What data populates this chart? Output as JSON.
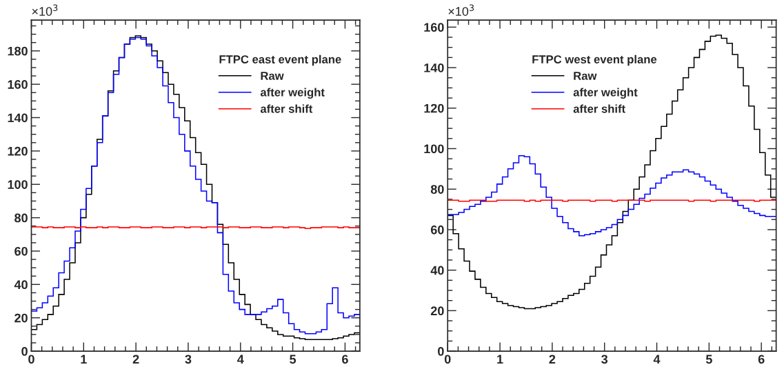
{
  "chart_data": [
    {
      "type": "histogram",
      "legend_title": "FTPC east event plane",
      "annotations": [
        "×10$^{3}$"
      ],
      "legend": "top right",
      "xlim": [
        0,
        6.2832
      ],
      "xticks": [
        0,
        1,
        2,
        3,
        4,
        5,
        6
      ],
      "ylim": [
        0,
        198.5
      ],
      "yticks": [
        0,
        20,
        40,
        60,
        80,
        100,
        120,
        140,
        160,
        180
      ],
      "bins": [
        0,
        0.1047,
        0.2094,
        0.3142,
        0.4189,
        0.5236,
        0.6283,
        0.733,
        0.8378,
        0.9425,
        1.0472,
        1.1519,
        1.2566,
        1.3614,
        1.4661,
        1.5708,
        1.6755,
        1.7802,
        1.885,
        1.9897,
        2.0944,
        2.1991,
        2.3038,
        2.4086,
        2.5133,
        2.618,
        2.7227,
        2.8274,
        2.9322,
        3.0369,
        3.1416,
        3.2463,
        3.351,
        3.4558,
        3.5605,
        3.6652,
        3.7699,
        3.8746,
        3.9794,
        4.0841,
        4.1888,
        4.2935,
        4.3982,
        4.5029,
        4.6077,
        4.7124,
        4.8171,
        4.9218,
        5.0265,
        5.1313,
        5.236,
        5.3407,
        5.4454,
        5.5501,
        5.6549,
        5.7596,
        5.8643,
        5.969,
        6.0737,
        6.1785,
        6.2832
      ],
      "series": [
        {
          "name": "Raw",
          "color": "#000000",
          "values": [
            13,
            16,
            19,
            22,
            27,
            34,
            43,
            53,
            65,
            80,
            94,
            111,
            127,
            141,
            156,
            168,
            176,
            184,
            188,
            189,
            188,
            184,
            180,
            174,
            167,
            160,
            154,
            146,
            138,
            128,
            119,
            112,
            100,
            89,
            76,
            64,
            53,
            43,
            34,
            28,
            22,
            19,
            16,
            14,
            12,
            10,
            9,
            9,
            8,
            7.5,
            7,
            7,
            7,
            7,
            7,
            7.5,
            8,
            9,
            10,
            11
          ]
        },
        {
          "name": "after weight",
          "color": "#0000ff",
          "values": [
            24,
            26,
            29,
            33,
            38,
            47,
            54,
            62,
            72,
            85,
            97.5,
            111,
            125,
            141,
            155,
            166,
            176,
            184,
            187,
            188,
            187,
            183,
            177,
            170,
            159,
            149,
            140,
            130,
            120,
            111,
            103,
            96,
            90,
            89,
            71,
            46,
            36,
            29,
            25,
            22,
            22,
            22,
            23.5,
            25.5,
            27,
            31,
            23,
            16.5,
            13,
            11.5,
            10.5,
            10.5,
            11.5,
            13,
            28.5,
            38,
            23,
            20,
            21,
            22
          ]
        },
        {
          "name": "after shift",
          "color": "#ff0000",
          "values": [
            74.5,
            74.5,
            74,
            74.5,
            74,
            74,
            74.5,
            74.5,
            74,
            74.5,
            74,
            74,
            74.5,
            74,
            74.5,
            74.5,
            74,
            74,
            74.5,
            74.5,
            74,
            74,
            74.5,
            74.5,
            74,
            74,
            74.5,
            74.5,
            74,
            74.5,
            74.5,
            74,
            74.5,
            74.5,
            74.5,
            74,
            74.5,
            74.5,
            74,
            74,
            74.5,
            74.5,
            74,
            74,
            74.5,
            74.5,
            74,
            74.5,
            74.5,
            74,
            73.5,
            74,
            74,
            74.5,
            74.5,
            74.5,
            74,
            74.5,
            74,
            74
          ]
        }
      ]
    },
    {
      "type": "histogram",
      "legend_title": "FTPC west event plane",
      "annotations": [
        "×10$^{3}$"
      ],
      "legend": "top left",
      "xlim": [
        0,
        6.2832
      ],
      "xticks": [
        0,
        1,
        2,
        3,
        4,
        5,
        6
      ],
      "ylim": [
        0,
        163.5
      ],
      "yticks": [
        0,
        20,
        40,
        60,
        80,
        100,
        120,
        140,
        160
      ],
      "bins": [
        0,
        0.1047,
        0.2094,
        0.3142,
        0.4189,
        0.5236,
        0.6283,
        0.733,
        0.8378,
        0.9425,
        1.0472,
        1.1519,
        1.2566,
        1.3614,
        1.4661,
        1.5708,
        1.6755,
        1.7802,
        1.885,
        1.9897,
        2.0944,
        2.1991,
        2.3038,
        2.4086,
        2.5133,
        2.618,
        2.7227,
        2.8274,
        2.9322,
        3.0369,
        3.1416,
        3.2463,
        3.351,
        3.4558,
        3.5605,
        3.6652,
        3.7699,
        3.8746,
        3.9794,
        4.0841,
        4.1888,
        4.2935,
        4.3982,
        4.5029,
        4.6077,
        4.7124,
        4.8171,
        4.9218,
        5.0265,
        5.1313,
        5.236,
        5.3407,
        5.4454,
        5.5501,
        5.6549,
        5.7596,
        5.8643,
        5.969,
        6.0737,
        6.1785,
        6.2832
      ],
      "series": [
        {
          "name": "Raw",
          "color": "#000000",
          "values": [
            67,
            58,
            50.5,
            44.5,
            39.5,
            35.5,
            31.5,
            28.5,
            26.5,
            24.5,
            23.5,
            22.5,
            22,
            21.5,
            21,
            21,
            21.5,
            22,
            22.5,
            23.5,
            24.5,
            26,
            27.5,
            28.5,
            30.5,
            33.5,
            37,
            41.5,
            47.5,
            52.5,
            57,
            63.5,
            69,
            74.5,
            80,
            86,
            92,
            99,
            105,
            111,
            117,
            123.5,
            129,
            135,
            140,
            145,
            149,
            153,
            155.5,
            156,
            154.5,
            152,
            146.5,
            140,
            131,
            121,
            109.5,
            98,
            87,
            76
          ]
        },
        {
          "name": "after weight",
          "color": "#0000ff",
          "values": [
            67.5,
            67.5,
            68.5,
            70,
            71.5,
            72.5,
            74,
            76,
            78.5,
            82.5,
            86,
            90,
            93,
            96.5,
            96,
            92.5,
            87.5,
            81,
            76,
            70.5,
            66.5,
            63.5,
            60.5,
            59,
            57,
            57.5,
            58,
            59,
            60,
            61,
            62.5,
            65,
            67,
            70,
            72.5,
            75.5,
            77.5,
            80.5,
            83,
            85.5,
            87,
            88.5,
            88.5,
            89.5,
            88.5,
            87.5,
            86,
            84,
            82,
            80,
            78,
            76,
            74,
            72,
            70.5,
            69,
            68,
            67,
            66.5,
            66.5
          ]
        },
        {
          "name": "after shift",
          "color": "#ff0000",
          "values": [
            74.5,
            74.5,
            74,
            74,
            74.5,
            74.5,
            74.5,
            74,
            74,
            74.5,
            74.5,
            74.5,
            74.5,
            74.5,
            74,
            74.5,
            74,
            74.5,
            74.5,
            74.5,
            74.5,
            74,
            74.5,
            74.5,
            74.5,
            74.5,
            74,
            74.5,
            74.5,
            74.5,
            74,
            74.5,
            74.5,
            74.5,
            74.5,
            74.5,
            74,
            74.5,
            74.5,
            74.5,
            74.5,
            74.5,
            74.5,
            74.5,
            74,
            74.5,
            74.5,
            74.5,
            74,
            74.5,
            74.5,
            74.5,
            74.5,
            74.5,
            74.5,
            74.5,
            74,
            74.5,
            74.5,
            74.5
          ]
        }
      ]
    }
  ]
}
